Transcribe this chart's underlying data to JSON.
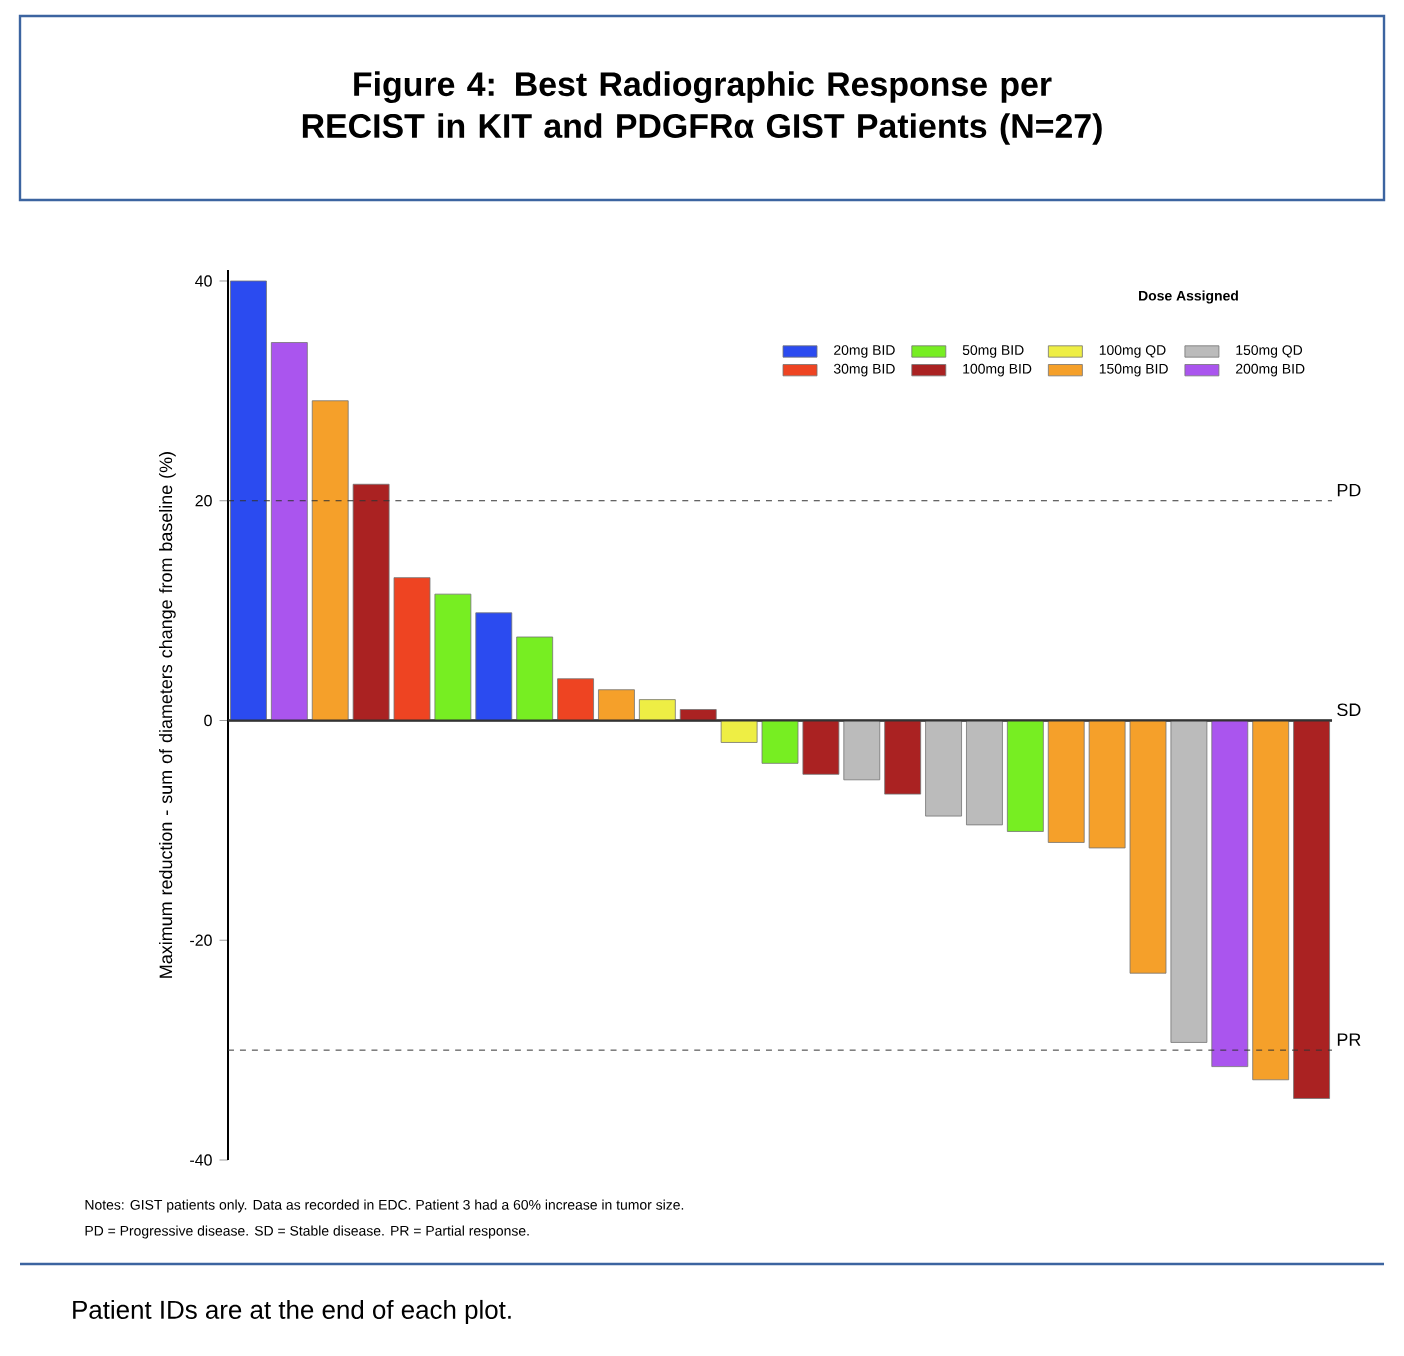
{
  "chart_data": {
    "type": "bar",
    "title": "Figure 4: Best Radiographic Response per RECIST in KIT and PDGFRα GIST Patients (N=27)",
    "ylabel": "Maximum reduction - sum of diameters change from baseline (%)",
    "legend_title": "Dose Assigned",
    "categories": [
      null,
      null,
      null,
      null,
      null,
      null,
      null,
      null,
      null,
      null,
      null,
      null,
      null,
      null,
      null,
      null,
      null,
      null,
      null,
      null,
      null,
      null,
      null,
      null,
      null,
      null,
      null
    ],
    "series": [
      {
        "name": "20mg BID",
        "color": "#2b4bf0",
        "values": [
          40,
          null,
          null,
          null,
          null,
          null,
          9.8,
          null,
          null,
          null,
          null,
          null,
          null,
          null,
          null,
          null,
          null,
          null,
          null,
          null,
          null,
          null,
          null,
          null,
          null,
          null,
          null
        ]
      },
      {
        "name": "30mg BID",
        "color": "#ee4422",
        "values": [
          null,
          null,
          null,
          null,
          13.0,
          null,
          null,
          null,
          3.8,
          null,
          null,
          null,
          null,
          null,
          null,
          null,
          null,
          null,
          null,
          null,
          null,
          null,
          null,
          null,
          null,
          null,
          null
        ]
      },
      {
        "name": "50mg BID",
        "color": "#77ee22",
        "values": [
          null,
          null,
          null,
          null,
          null,
          11.5,
          null,
          7.6,
          null,
          null,
          null,
          null,
          null,
          -3.9,
          null,
          null,
          null,
          null,
          null,
          -10.1,
          null,
          null,
          null,
          null,
          null,
          null,
          null
        ]
      },
      {
        "name": "100mg BID",
        "color": "#aa2222",
        "values": [
          null,
          null,
          null,
          21.5,
          null,
          null,
          null,
          null,
          null,
          null,
          null,
          1.0,
          null,
          null,
          -4.9,
          null,
          -6.7,
          null,
          null,
          null,
          null,
          null,
          null,
          null,
          null,
          null,
          -34.4
        ]
      },
      {
        "name": "100mg QD",
        "color": "#eeee44",
        "values": [
          null,
          null,
          null,
          null,
          null,
          null,
          null,
          null,
          null,
          null,
          1.9,
          null,
          -2.0,
          null,
          null,
          null,
          null,
          null,
          null,
          null,
          null,
          null,
          null,
          null,
          null,
          null,
          null
        ]
      },
      {
        "name": "150mg BID",
        "color": "#f5a02a",
        "values": [
          null,
          null,
          29.1,
          null,
          null,
          null,
          null,
          null,
          null,
          2.8,
          null,
          null,
          null,
          null,
          null,
          null,
          null,
          null,
          null,
          null,
          -11.1,
          -11.6,
          -23.0,
          null,
          null,
          -32.7,
          null
        ]
      },
      {
        "name": "150mg QD",
        "color": "#bbbbbb",
        "values": [
          null,
          null,
          null,
          null,
          null,
          null,
          null,
          null,
          null,
          null,
          null,
          null,
          null,
          null,
          null,
          -5.4,
          null,
          -8.7,
          -9.5,
          null,
          null,
          null,
          null,
          -29.3,
          null,
          null,
          null
        ]
      },
      {
        "name": "200mg BID",
        "color": "#aa55ee",
        "values": [
          null,
          34.4,
          null,
          null,
          null,
          null,
          null,
          null,
          null,
          null,
          null,
          null,
          null,
          null,
          null,
          null,
          null,
          null,
          null,
          null,
          null,
          null,
          null,
          null,
          -31.5,
          null,
          null
        ]
      }
    ],
    "ylim": [
      -40,
      41
    ],
    "yticks": [
      -40,
      -20,
      0,
      20,
      40
    ],
    "ref_lines": [
      {
        "axis": "y",
        "value": 20,
        "label": "PD",
        "line_style": "dashed"
      },
      {
        "axis": "y",
        "value": 0,
        "label": "SD",
        "line_style": "solid"
      },
      {
        "axis": "y",
        "value": -30,
        "label": "PR",
        "line_style": "dashed"
      }
    ],
    "legend": "top right",
    "annotations": [
      "Notes: GIST patients only. Data as recorded in EDC. Patient 3 had a 60% increase in tumor size.",
      "PD = Progressive disease. SD = Stable disease. PR = Partial response.",
      "Patient IDs are at the end of each plot."
    ]
  }
}
